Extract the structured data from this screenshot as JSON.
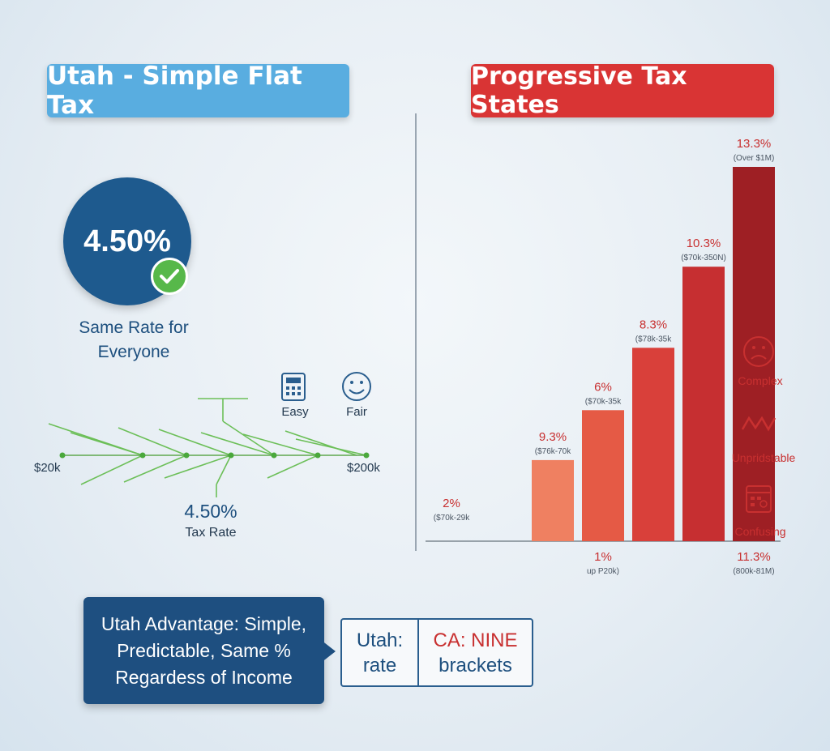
{
  "left_panel": {
    "title": "Utah - Simple Flat Tax",
    "rate": "4.50%",
    "tagline_line1": "Same Rate for",
    "tagline_line2": "Everyone",
    "easy_label": "Easy",
    "fair_label": "Fair",
    "income_min": "$20k",
    "income_max": "$200k",
    "rate_callout": "4.50%",
    "rate_callout_label": "Tax Rate",
    "icons": [
      "calculator-icon",
      "smiley-icon",
      "check-icon"
    ]
  },
  "right_panel": {
    "title": "Progressive Tax States",
    "side_labels": [
      "Complex",
      "Unpredictable",
      "Confusing"
    ],
    "side_label_display": [
      "Complex",
      "Unpridstable",
      "Confusing"
    ],
    "icons": [
      "sad-face-icon",
      "zigzag-icon",
      "confused-calculator-icon"
    ]
  },
  "chart_data": {
    "type": "bar",
    "title": "Progressive Tax States",
    "categories": [
      "($70k-29k",
      "($76k-70k",
      "($70k-35k",
      "($78k-35k",
      "($70k-350N)",
      "(Over $1M)"
    ],
    "series": [
      {
        "values": [
          2,
          9.3,
          6,
          8.3,
          10.3,
          13.3
        ]
      }
    ],
    "value_labels": [
      "2%",
      "9.3%",
      "6%",
      "8.3%",
      "10.3%",
      "13.3%"
    ],
    "bar_heights_rank": [
      0,
      1.3,
      2.1,
      3.1,
      4.4,
      6.0
    ],
    "ylim": [
      0,
      13.3
    ],
    "colors": [
      "#f6a88c",
      "#ef8061",
      "#e55a45",
      "#d9403a",
      "#c62f31",
      "#9e1f24"
    ],
    "below_axis_labels": [
      {
        "value": "1%",
        "sub": "up P20k)",
        "under_bar": 2
      },
      {
        "value": "11.3%",
        "sub": "(800k-81M)",
        "under_bar": 5
      }
    ],
    "xlabel": "",
    "ylabel": "",
    "grid": false,
    "legend": "none"
  },
  "bottom": {
    "advantage_line1": "Utah Advantage: Simple,",
    "advantage_line2": "Predictable, Same %",
    "advantage_line3": "Regardess of Income",
    "utah_line1": "Utah:",
    "utah_line2": "rate",
    "ca_line1": "CA: NINE",
    "ca_line2": "brackets"
  },
  "colors": {
    "flat_blue": "#1e5a8e",
    "banner_blue": "#59ade0",
    "banner_red": "#d93434",
    "line_green": "#57b84a"
  }
}
